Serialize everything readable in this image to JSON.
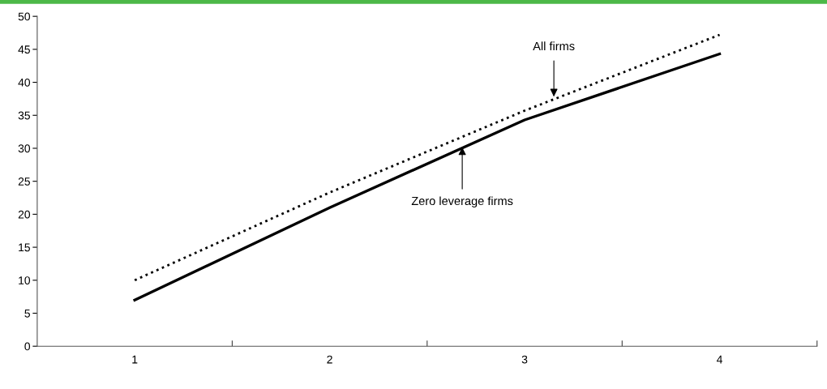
{
  "chart_data": {
    "type": "line",
    "categories": [
      "1",
      "2",
      "3",
      "4"
    ],
    "series": [
      {
        "color": "#000000",
        "values": [
          10,
          23.3,
          35.7,
          47.2
        ],
        "line_style": "dotted"
      },
      {
        "color": "#000000",
        "values": [
          7,
          21,
          34.3,
          44.3
        ],
        "line_style": "solid"
      }
    ],
    "ylim": [
      0,
      50
    ],
    "yticks": [
      0,
      5,
      10,
      15,
      20,
      25,
      30,
      35,
      40,
      45,
      50
    ],
    "annotations": [
      {
        "text": "All firms",
        "y": 37.5
      },
      {
        "text": "Zero leverage firms",
        "y": 30.5
      }
    ],
    "grid": false,
    "legend": false,
    "marker": "none"
  }
}
